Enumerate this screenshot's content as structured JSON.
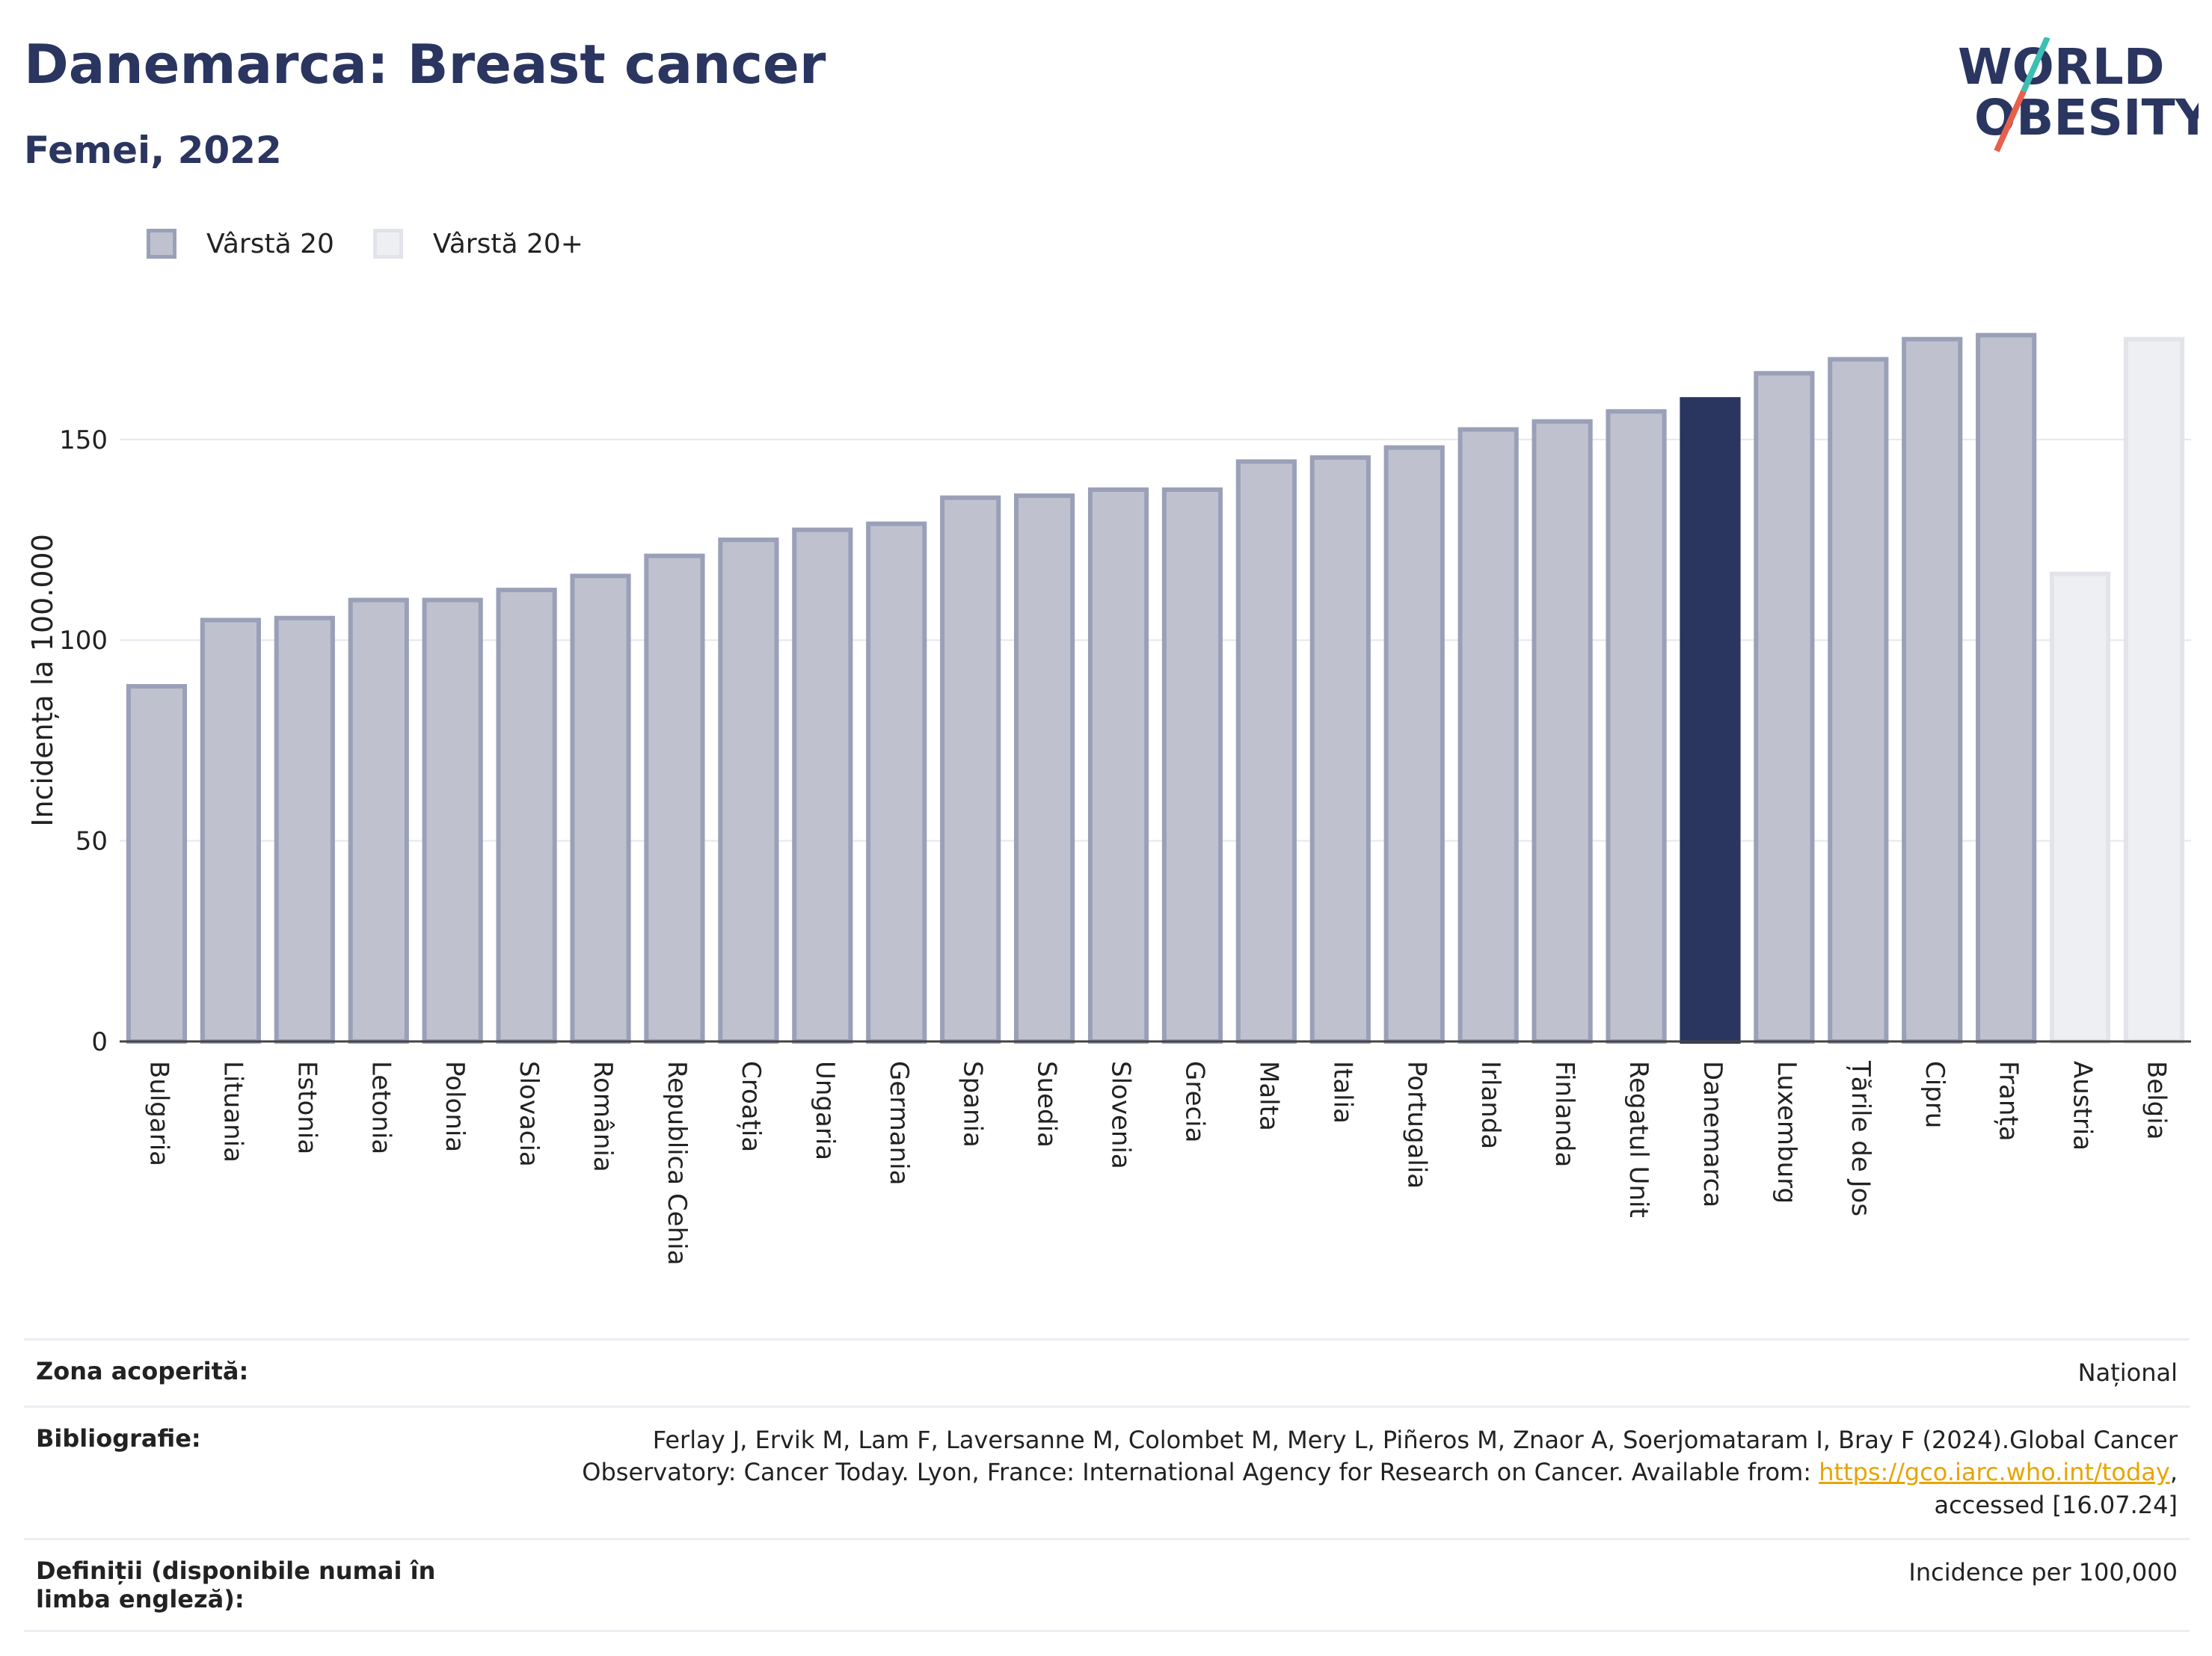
{
  "header": {
    "title": "Danemarca: Breast cancer",
    "subtitle": "Femei, 2022",
    "logo_line1": "WORLD",
    "logo_line2": "OBESITY"
  },
  "legend": [
    {
      "label": "Vârstă 20",
      "color": "#bfc2ce"
    },
    {
      "label": "Vârstă 20+",
      "color": "#eeeff2"
    }
  ],
  "chart_data": {
    "type": "bar",
    "ylabel": "Incidența la 100.000",
    "ylim": [
      0,
      185
    ],
    "yticks": [
      0,
      50,
      100,
      150
    ],
    "grid": true,
    "legend_position": "top-left",
    "highlight_color": "#2a3560",
    "categories": [
      "Bulgaria",
      "Lituania",
      "Estonia",
      "Letonia",
      "Polonia",
      "Slovacia",
      "România",
      "Republica Cehia",
      "Croația",
      "Ungaria",
      "Germania",
      "Spania",
      "Suedia",
      "Slovenia",
      "Grecia",
      "Malta",
      "Italia",
      "Portugalia",
      "Irlanda",
      "Finlanda",
      "Regatul Unit",
      "Danemarca",
      "Luxemburg",
      "Țările de Jos",
      "Cipru",
      "Franța",
      "Austria",
      "Belgia"
    ],
    "values": [
      88.5,
      105,
      105.5,
      110,
      110,
      112.5,
      116,
      121,
      125,
      127.5,
      129,
      135.5,
      136,
      137.5,
      137.5,
      144.5,
      145.5,
      148,
      152.5,
      154.5,
      157,
      160,
      166.5,
      170,
      175,
      176,
      116.5,
      175
    ],
    "series_type": [
      "Vârstă 20",
      "Vârstă 20",
      "Vârstă 20",
      "Vârstă 20",
      "Vârstă 20",
      "Vârstă 20",
      "Vârstă 20",
      "Vârstă 20",
      "Vârstă 20",
      "Vârstă 20",
      "Vârstă 20",
      "Vârstă 20",
      "Vârstă 20",
      "Vârstă 20",
      "Vârstă 20",
      "Vârstă 20",
      "Vârstă 20",
      "Vârstă 20",
      "Vârstă 20",
      "Vârstă 20",
      "Vârstă 20",
      "Vârstă 20",
      "Vârstă 20",
      "Vârstă 20",
      "Vârstă 20",
      "Vârstă 20",
      "Vârstă 20+",
      "Vârstă 20+"
    ],
    "highlight": "Danemarca"
  },
  "footer": {
    "coverage_label": "Zona acoperită:",
    "coverage_value": "Național",
    "bibliography_label": "Bibliografie:",
    "bibliography_text1": "Ferlay J, Ervik M, Lam F, Laversanne M, Colombet M, Mery L, Piñeros M, Znaor A, Soerjomataram I, Bray F (2024).Global Cancer Observatory: Cancer Today. Lyon, France: International Agency for Research on Cancer. Available from: ",
    "bibliography_link": "https://gco.iarc.who.int/today",
    "bibliography_text2": ", accessed [16.07.24]",
    "definitions_label": "Definiții (disponibile numai în limba engleză):",
    "definitions_value": "Incidence per 100,000"
  }
}
